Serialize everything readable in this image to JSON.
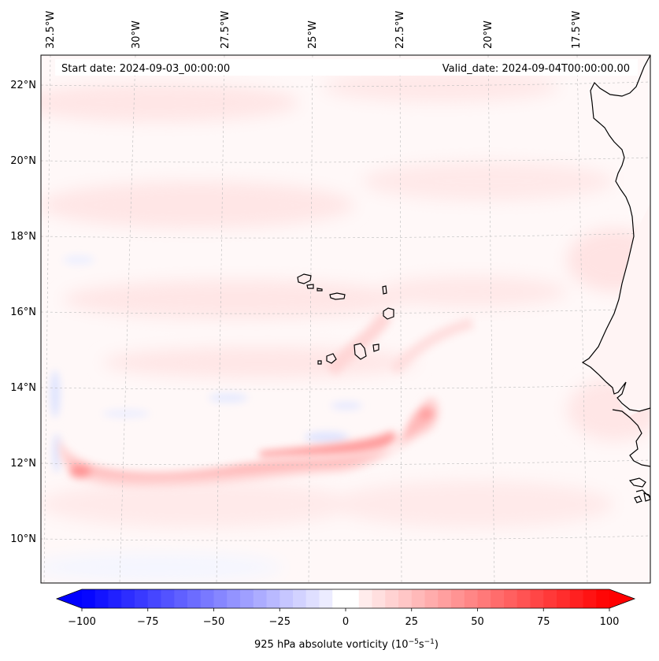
{
  "map": {
    "start_date_label": "Start date: 2024-09-03_00:00:00",
    "valid_date_label": "Valid_date: 2024-09-04T00:00:00.00",
    "longitude_labels": [
      "32.5°W",
      "30°W",
      "27.5°W",
      "25°W",
      "22.5°W",
      "20°W",
      "17.5°W"
    ],
    "latitude_labels": [
      "22°N",
      "20°N",
      "18°N",
      "16°N",
      "14°N",
      "12°N",
      "10°N"
    ],
    "variable": "925 hPa absolute vorticity",
    "features": [
      "Cape Verde islands",
      "West African coastline",
      "vorticity band near 12°N"
    ]
  },
  "colorbar": {
    "tick_labels": [
      "−100",
      "−75",
      "−50",
      "−25",
      "0",
      "25",
      "50",
      "75",
      "100"
    ],
    "label_prefix": "925 hPa absolute vorticity (10",
    "exp1": "−5",
    "label_mid": "s",
    "exp2": "−1",
    "label_suffix": ")",
    "min": -100,
    "max": 100,
    "step": 5
  },
  "colors": {
    "negative": "#0000ff",
    "zero": "#ffffff",
    "positive": "#ff0000",
    "grid": "#bbbbbb"
  }
}
